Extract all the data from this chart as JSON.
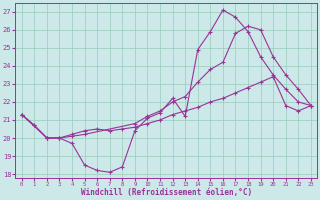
{
  "bg_color": "#cce8e8",
  "line_color": "#993399",
  "grid_color": "#99ccbb",
  "xlabel": "Windchill (Refroidissement éolien,°C)",
  "xlim": [
    -0.5,
    23.5
  ],
  "ylim": [
    17.8,
    27.5
  ],
  "yticks": [
    18,
    19,
    20,
    21,
    22,
    23,
    24,
    25,
    26,
    27
  ],
  "xticks": [
    0,
    1,
    2,
    3,
    4,
    5,
    6,
    7,
    8,
    9,
    10,
    11,
    12,
    13,
    14,
    15,
    16,
    17,
    18,
    19,
    20,
    21,
    22,
    23
  ],
  "line1_x": [
    0,
    1,
    2,
    3,
    4,
    5,
    6,
    7,
    8,
    9,
    10,
    11,
    12,
    13,
    14,
    15,
    16,
    17,
    18,
    19,
    20,
    21,
    22,
    23
  ],
  "line1_y": [
    21.3,
    20.7,
    20.0,
    20.0,
    19.7,
    18.5,
    18.2,
    18.1,
    18.4,
    20.4,
    21.1,
    21.4,
    22.2,
    21.2,
    24.9,
    25.9,
    27.1,
    26.7,
    25.9,
    24.5,
    23.5,
    22.7,
    22.0,
    21.8
  ],
  "line2_x": [
    0,
    1,
    2,
    3,
    4,
    5,
    6,
    7,
    8,
    9,
    10,
    11,
    12,
    13,
    14,
    15,
    16,
    17,
    18,
    19,
    20,
    21,
    22,
    23
  ],
  "line2_y": [
    21.3,
    20.7,
    20.0,
    20.0,
    20.2,
    20.4,
    20.5,
    20.4,
    20.5,
    20.6,
    20.8,
    21.0,
    21.3,
    21.5,
    21.7,
    22.0,
    22.2,
    22.5,
    22.8,
    23.1,
    23.4,
    21.8,
    21.5,
    21.8
  ],
  "line3_x": [
    0,
    2,
    3,
    4,
    5,
    9,
    10,
    11,
    12,
    13,
    14,
    15,
    16,
    17,
    18,
    19,
    20,
    21,
    22,
    23
  ],
  "line3_y": [
    21.3,
    20.0,
    20.0,
    20.1,
    20.2,
    20.8,
    21.2,
    21.5,
    22.0,
    22.3,
    23.1,
    23.8,
    24.2,
    25.8,
    26.2,
    26.0,
    24.5,
    23.5,
    22.7,
    21.8
  ]
}
